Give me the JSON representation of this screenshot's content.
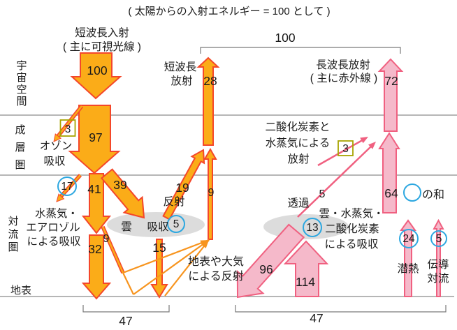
{
  "title": "( 太陽からの入射エネルギー = 100 として )",
  "layers": {
    "space": "宇宙空間",
    "stratosphere": "成層圏",
    "troposphere": "対流圏",
    "surface": "地表"
  },
  "shortwave": {
    "incoming_label_line1": "短波長入射",
    "incoming_label_line2": "( 主に可視光線 )",
    "incoming_value": "100",
    "after_ozone_value": "97",
    "ozone_value": "3",
    "ozone_label_line1": "オゾン",
    "ozone_label_line2": "吸収",
    "outgoing_label_line1": "短波長",
    "outgoing_label_line2": "放射",
    "outgoing_value": "28",
    "vapor_absorbed_value": "17",
    "vapor_label_line1": "水蒸気・",
    "vapor_label_line2": "エアロゾル",
    "vapor_label_line3": "による吸収",
    "down_mid_value": "41",
    "to_cloud_value": "39",
    "cloud_reflect_value": "19",
    "reflect_label": "反射",
    "up_reflected_value": "9",
    "to_surface_value": "32",
    "scatter_down_value": "9",
    "cloud_label": "雲",
    "cloud_absorb_label": "吸収",
    "cloud_absorb_value": "5",
    "through_cloud_value": "15",
    "surface_reflect_label_line1": "地表や大気",
    "surface_reflect_label_line2": "による反射",
    "surface_total_value": "47"
  },
  "longwave": {
    "top_total_value": "100",
    "outgoing_label_line1": "長波長放射",
    "outgoing_label_line2": "( 主に赤外線 )",
    "outgoing_value": "72",
    "co2_radiation_label_line1": "二酸化炭素と",
    "co2_radiation_label_line2": "水蒸気による",
    "co2_radiation_label_line3": "放射",
    "co2_radiation_value": "3",
    "transmit_label": "透過",
    "transmit_value": "5",
    "atmos_up_value": "64",
    "circle_sum_label": "の和",
    "cloud_absorb_label_line1": "雲・水蒸気・",
    "cloud_absorb_label_line2": "二酸化炭素",
    "cloud_absorb_label_line3": "による吸収",
    "cloud_absorb_value": "13",
    "back_radiation_value": "96",
    "surface_up_value": "114",
    "latent_value": "24",
    "latent_label": "潜熱",
    "conduction_value": "5",
    "conduction_label_line1": "伝導",
    "conduction_label_line2": "対流",
    "surface_total_value": "47"
  },
  "colors": {
    "shortwave_fill": "#fbac18",
    "shortwave_outline": "#f4472a",
    "shortwave_thin": "#f7941e",
    "longwave_fill": "#f5b9ca",
    "longwave_outline": "#f06080",
    "cloud_gray": "#dcdcdc",
    "circle_blue": "#2ca7e0",
    "box_olive": "#a8a400",
    "layer_line_gray": "#8a8a8a",
    "text": "#1a1a1a"
  }
}
